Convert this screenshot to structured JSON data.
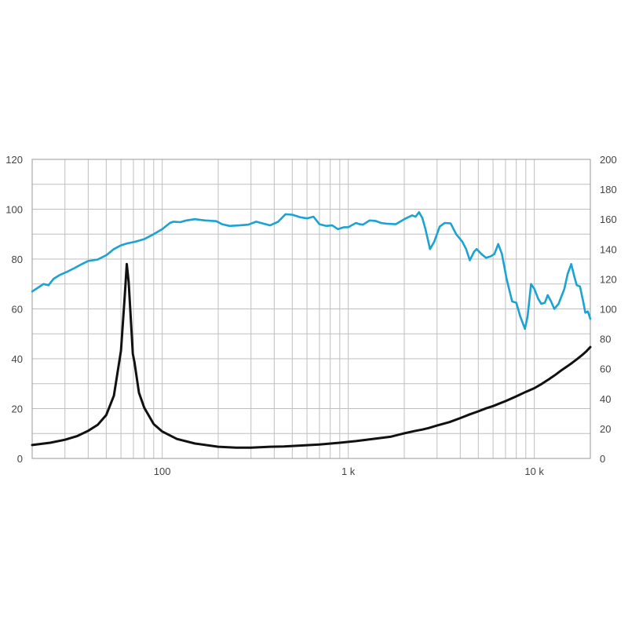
{
  "chart_data": {
    "type": "line",
    "x_scale": "log",
    "xlim": [
      20,
      20000
    ],
    "x_tick_labels": [
      {
        "value": 100,
        "label": "100"
      },
      {
        "value": 1000,
        "label": "1 k"
      },
      {
        "value": 10000,
        "label": "10 k"
      }
    ],
    "y_left": {
      "range": [
        0,
        120
      ],
      "ticks": [
        0,
        20,
        40,
        60,
        80,
        100,
        120
      ]
    },
    "y_right": {
      "range": [
        0,
        200
      ],
      "ticks": [
        0,
        20,
        40,
        60,
        80,
        100,
        120,
        140,
        160,
        180,
        200
      ]
    },
    "grid": true,
    "legend": "none",
    "series": [
      {
        "axis": "left",
        "color": "#1ba3d1",
        "points": [
          [
            20,
            67
          ],
          [
            22,
            69
          ],
          [
            23,
            70
          ],
          [
            24.5,
            69.5
          ],
          [
            26,
            72
          ],
          [
            28,
            73.5
          ],
          [
            31,
            75
          ],
          [
            34,
            76.5
          ],
          [
            37,
            78
          ],
          [
            40,
            79.2
          ],
          [
            45,
            79.8
          ],
          [
            50,
            81.5
          ],
          [
            55,
            84
          ],
          [
            60,
            85.5
          ],
          [
            65,
            86.3
          ],
          [
            72,
            87
          ],
          [
            80,
            88
          ],
          [
            90,
            90
          ],
          [
            100,
            92
          ],
          [
            110,
            94.5
          ],
          [
            115,
            95
          ],
          [
            125,
            94.8
          ],
          [
            135,
            95.5
          ],
          [
            150,
            96
          ],
          [
            170,
            95.5
          ],
          [
            195,
            95.2
          ],
          [
            210,
            94
          ],
          [
            230,
            93.3
          ],
          [
            260,
            93.5
          ],
          [
            290,
            93.8
          ],
          [
            320,
            95
          ],
          [
            350,
            94.2
          ],
          [
            380,
            93.5
          ],
          [
            420,
            95
          ],
          [
            460,
            98
          ],
          [
            500,
            97.8
          ],
          [
            550,
            96.8
          ],
          [
            600,
            96.3
          ],
          [
            650,
            97
          ],
          [
            700,
            94
          ],
          [
            760,
            93.3
          ],
          [
            820,
            93.5
          ],
          [
            880,
            92
          ],
          [
            950,
            92.8
          ],
          [
            1000,
            92.8
          ],
          [
            1100,
            94.5
          ],
          [
            1150,
            94
          ],
          [
            1200,
            93.8
          ],
          [
            1300,
            95.5
          ],
          [
            1400,
            95.3
          ],
          [
            1500,
            94.5
          ],
          [
            1600,
            94.2
          ],
          [
            1800,
            94
          ],
          [
            2000,
            96
          ],
          [
            2200,
            97.5
          ],
          [
            2300,
            97
          ],
          [
            2400,
            98.8
          ],
          [
            2500,
            96.5
          ],
          [
            2600,
            92
          ],
          [
            2750,
            84
          ],
          [
            2900,
            87
          ],
          [
            3100,
            93
          ],
          [
            3300,
            94.5
          ],
          [
            3550,
            94.3
          ],
          [
            3800,
            90
          ],
          [
            4100,
            87
          ],
          [
            4300,
            84
          ],
          [
            4500,
            79.5
          ],
          [
            4750,
            83
          ],
          [
            4900,
            84
          ],
          [
            5200,
            82
          ],
          [
            5500,
            80.5
          ],
          [
            5800,
            81
          ],
          [
            6100,
            82
          ],
          [
            6400,
            86
          ],
          [
            6700,
            82
          ],
          [
            7100,
            72
          ],
          [
            7600,
            63
          ],
          [
            8000,
            62.5
          ],
          [
            8400,
            57
          ],
          [
            8900,
            52
          ],
          [
            9200,
            57
          ],
          [
            9600,
            70
          ],
          [
            10000,
            68
          ],
          [
            10500,
            64
          ],
          [
            10900,
            62
          ],
          [
            11400,
            62.5
          ],
          [
            11800,
            65.5
          ],
          [
            12300,
            63
          ],
          [
            12800,
            60
          ],
          [
            13500,
            62
          ],
          [
            14500,
            68
          ],
          [
            15100,
            74
          ],
          [
            15800,
            78
          ],
          [
            16400,
            73
          ],
          [
            16900,
            69.5
          ],
          [
            17600,
            69
          ],
          [
            18300,
            63
          ],
          [
            18800,
            58.5
          ],
          [
            19400,
            59
          ],
          [
            20000,
            56
          ]
        ]
      },
      {
        "axis": "right",
        "color": "#111111",
        "points": [
          [
            20,
            9
          ],
          [
            25,
            10.5
          ],
          [
            30,
            12.5
          ],
          [
            35,
            15
          ],
          [
            40,
            18.5
          ],
          [
            45,
            22.5
          ],
          [
            50,
            29
          ],
          [
            55,
            42
          ],
          [
            60,
            72
          ],
          [
            63,
            110
          ],
          [
            64.5,
            130
          ],
          [
            66,
            118
          ],
          [
            68,
            90
          ],
          [
            69.5,
            70
          ],
          [
            71,
            64
          ],
          [
            75,
            44
          ],
          [
            80,
            34
          ],
          [
            90,
            23
          ],
          [
            100,
            18
          ],
          [
            120,
            13
          ],
          [
            150,
            10
          ],
          [
            200,
            7.8
          ],
          [
            250,
            7.2
          ],
          [
            300,
            7.2
          ],
          [
            380,
            7.8
          ],
          [
            450,
            8
          ],
          [
            550,
            8.6
          ],
          [
            700,
            9.3
          ],
          [
            900,
            10.5
          ],
          [
            1100,
            11.6
          ],
          [
            1350,
            13
          ],
          [
            1700,
            14.6
          ],
          [
            2000,
            16.8
          ],
          [
            2300,
            18.5
          ],
          [
            2500,
            19.3
          ],
          [
            2700,
            20.3
          ],
          [
            3000,
            22
          ],
          [
            3500,
            24.3
          ],
          [
            4000,
            27
          ],
          [
            4500,
            29.5
          ],
          [
            5000,
            31.5
          ],
          [
            5500,
            33.5
          ],
          [
            6000,
            35
          ],
          [
            7000,
            38.3
          ],
          [
            8000,
            41.5
          ],
          [
            9000,
            44.5
          ],
          [
            10000,
            47
          ],
          [
            11000,
            50
          ],
          [
            12000,
            53
          ],
          [
            13000,
            56
          ],
          [
            14000,
            59
          ],
          [
            15000,
            61.5
          ],
          [
            16000,
            64
          ],
          [
            17000,
            66.5
          ],
          [
            18000,
            69
          ],
          [
            19000,
            71.5
          ],
          [
            19500,
            73
          ],
          [
            20000,
            74.5
          ]
        ]
      }
    ]
  }
}
